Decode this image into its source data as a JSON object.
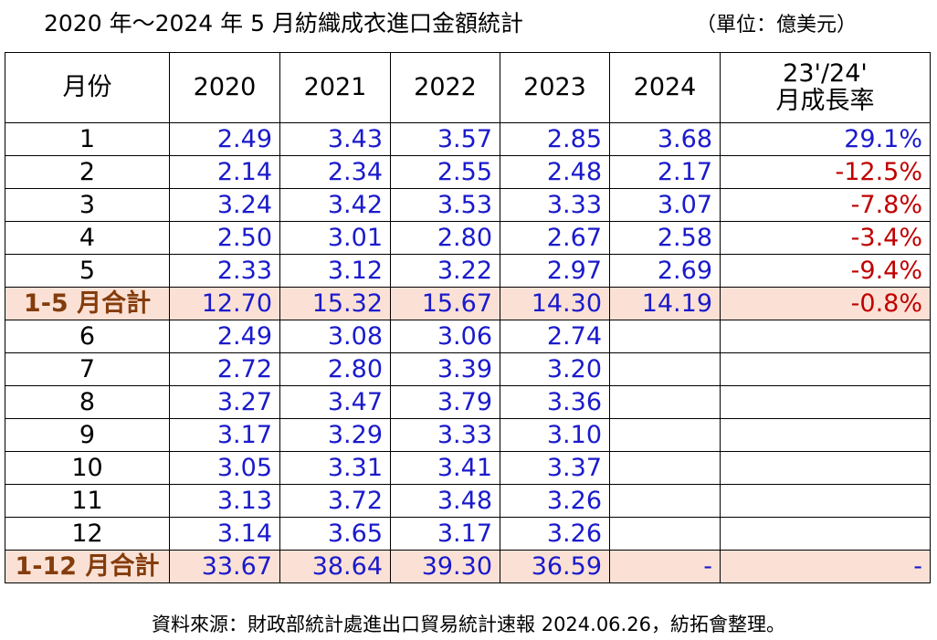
{
  "title": "2020 年～2024 年 5 月紡織成衣進口金額統計",
  "unit": "（單位：億美元）",
  "table": {
    "header": [
      "月份",
      "2020",
      "2021",
      "2022",
      "2023",
      "2024",
      [
        "23'/24'",
        "月成長率"
      ]
    ],
    "rows": [
      {
        "cells": [
          "1",
          "2.49",
          "3.43",
          "3.57",
          "2.85",
          "3.68",
          "29.1%"
        ]
      },
      {
        "cells": [
          "2",
          "2.14",
          "2.34",
          "2.55",
          "2.48",
          "2.17",
          "-12.5%"
        ]
      },
      {
        "cells": [
          "3",
          "3.24",
          "3.42",
          "3.53",
          "3.33",
          "3.07",
          "-7.8%"
        ]
      },
      {
        "cells": [
          "4",
          "2.50",
          "3.01",
          "2.80",
          "2.67",
          "2.58",
          "-3.4%"
        ]
      },
      {
        "cells": [
          "5",
          "2.33",
          "3.12",
          "3.22",
          "2.97",
          "2.69",
          "-9.4%"
        ]
      },
      {
        "cells": [
          "1-5 月合計",
          "12.70",
          "15.32",
          "15.67",
          "14.30",
          "14.19",
          "-0.8%"
        ],
        "total": true
      },
      {
        "cells": [
          "6",
          "2.49",
          "3.08",
          "3.06",
          "2.74"
        ]
      },
      {
        "cells": [
          "7",
          "2.72",
          "2.80",
          "3.39",
          "3.20"
        ]
      },
      {
        "cells": [
          "8",
          "3.27",
          "3.47",
          "3.79",
          "3.36"
        ]
      },
      {
        "cells": [
          "9",
          "3.17",
          "3.29",
          "3.33",
          "3.10"
        ]
      },
      {
        "cells": [
          "10",
          "3.05",
          "3.31",
          "3.41",
          "3.37"
        ]
      },
      {
        "cells": [
          "11",
          "3.13",
          "3.72",
          "3.48",
          "3.26"
        ]
      },
      {
        "cells": [
          "12",
          "3.14",
          "3.65",
          "3.17",
          "3.26"
        ]
      },
      {
        "cells": [
          "1-12 月合計",
          "33.67",
          "38.64",
          "39.30",
          "36.59",
          "-",
          "-"
        ],
        "total": true
      }
    ]
  },
  "footer": "資料來源：財政部統計處進出口貿易統計速報 2024.06.26，紡拓會整理。"
}
